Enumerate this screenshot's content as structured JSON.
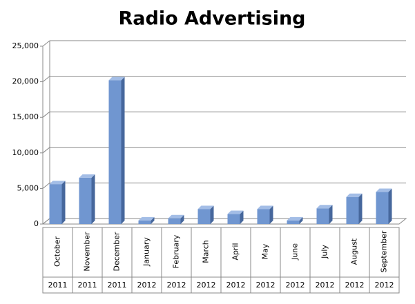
{
  "chart_data": {
    "type": "bar3d",
    "title": "Radio Advertising",
    "categories": [
      "October",
      "November",
      "December",
      "January",
      "February",
      "March",
      "April",
      "May",
      "June",
      "July",
      "August",
      "September"
    ],
    "years": [
      "2011",
      "2011",
      "2011",
      "2012",
      "2012",
      "2012",
      "2012",
      "2012",
      "2012",
      "2012",
      "2012",
      "2012"
    ],
    "values": [
      5600,
      6500,
      20200,
      500,
      800,
      2100,
      1400,
      2100,
      500,
      2200,
      3800,
      4500
    ],
    "color": "#7096d0",
    "ylim": [
      0,
      25000
    ],
    "yticks": [
      0,
      {
        "value": 5000,
        "label": "5,000"
      },
      {
        "value": 10000,
        "label": "10,000"
      },
      {
        "value": 15000,
        "label": "15,000"
      },
      {
        "value": 20000,
        "label": "20,000"
      },
      {
        "value": 25000,
        "label": "25,000"
      }
    ],
    "grid": true
  }
}
